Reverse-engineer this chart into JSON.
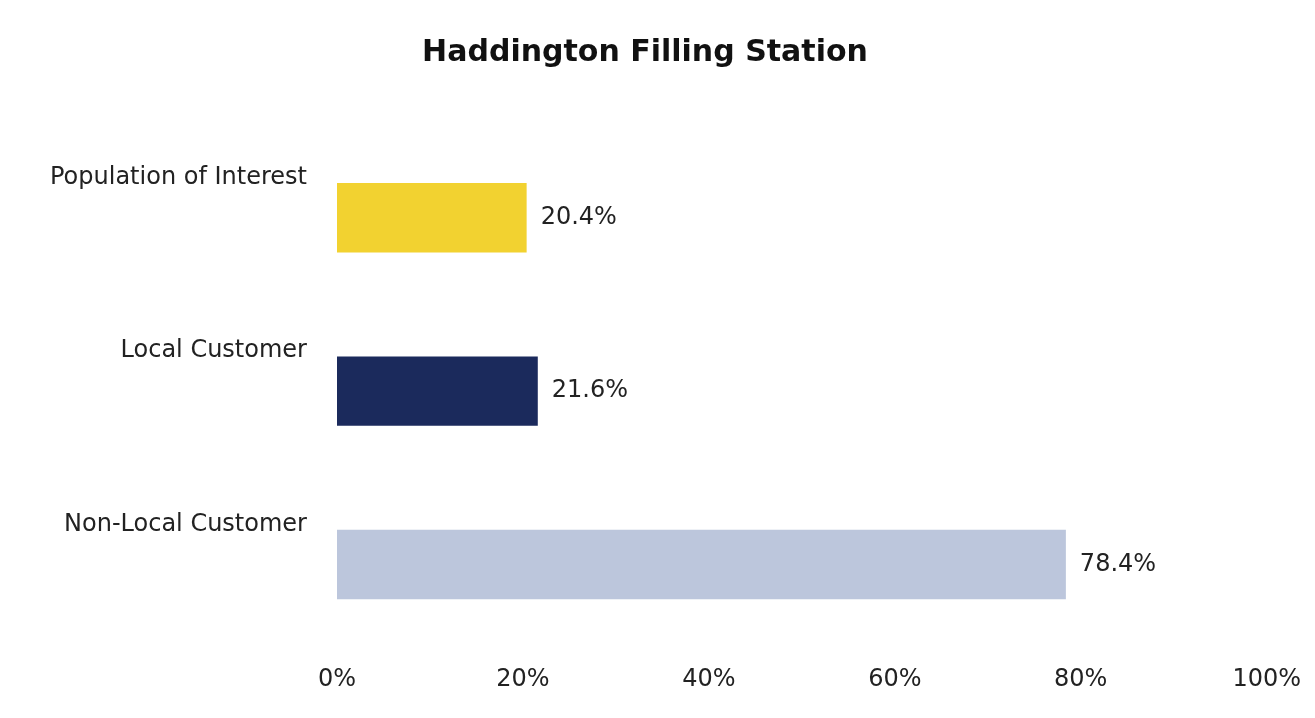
{
  "chart_data": {
    "type": "bar",
    "orientation": "horizontal",
    "title": "Haddington Filling Station",
    "categories": [
      "Population of Interest",
      "Local Customer",
      "Non-Local Customer"
    ],
    "values": [
      20.4,
      21.6,
      78.4
    ],
    "colors": [
      "#f2d230",
      "#1b2a5c",
      "#bcc6dc"
    ],
    "value_labels": [
      "20.4%",
      "21.6%",
      "78.4%"
    ],
    "xlim": [
      0,
      100
    ],
    "xticks": [
      {
        "value": 0,
        "label": "0%"
      },
      {
        "value": 20,
        "label": "20%"
      },
      {
        "value": 40,
        "label": "40%"
      },
      {
        "value": 60,
        "label": "60%"
      },
      {
        "value": 80,
        "label": "80%"
      },
      {
        "value": 100,
        "label": "100%"
      }
    ],
    "grid": false,
    "legend": false
  }
}
